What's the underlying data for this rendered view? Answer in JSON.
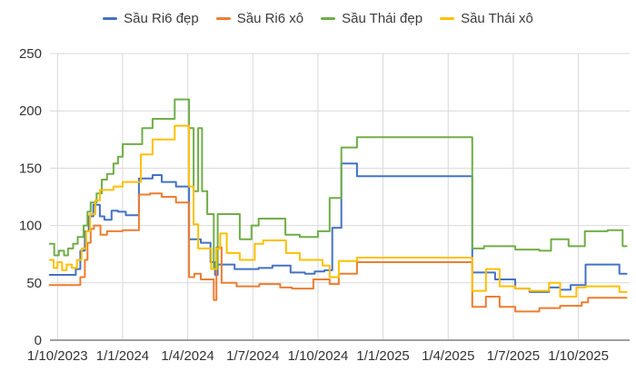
{
  "colors": {
    "background": "#FFFFFF",
    "grid": "#D9D9D9",
    "axis": "#808080",
    "label": "#333333"
  },
  "chart_data": {
    "type": "line",
    "title": "",
    "legend_position": "top",
    "grid": true,
    "step_interpolation": true,
    "ylim": [
      0,
      250
    ],
    "y_ticks": [
      0,
      50,
      100,
      150,
      200,
      250
    ],
    "x_tick_labels": [
      "1/10/2023",
      "1/1/2024",
      "1/4/2024",
      "1/7/2024",
      "1/10/2024",
      "1/1/2025",
      "1/4/2025",
      "1/7/2025",
      "1/10/2025"
    ],
    "x_unit": "quarters since 1/10/2023 tick",
    "x_range": [
      -0.12,
      8.74
    ],
    "series": [
      {
        "name": "Sầu Ri6 đẹp",
        "color": "#4472C4",
        "points": [
          [
            -0.12,
            57
          ],
          [
            0.28,
            62
          ],
          [
            0.35,
            78
          ],
          [
            0.42,
            95
          ],
          [
            0.48,
            108
          ],
          [
            0.55,
            118
          ],
          [
            0.65,
            108
          ],
          [
            0.72,
            105
          ],
          [
            0.83,
            113
          ],
          [
            0.93,
            112
          ],
          [
            1.05,
            109
          ],
          [
            1.25,
            141
          ],
          [
            1.46,
            144
          ],
          [
            1.6,
            138
          ],
          [
            1.82,
            134
          ],
          [
            2.02,
            88
          ],
          [
            2.2,
            85
          ],
          [
            2.35,
            68
          ],
          [
            2.42,
            57
          ],
          [
            2.46,
            66
          ],
          [
            2.72,
            62
          ],
          [
            3.09,
            63
          ],
          [
            3.3,
            65
          ],
          [
            3.58,
            59
          ],
          [
            3.8,
            58
          ],
          [
            3.95,
            60
          ],
          [
            4.1,
            61
          ],
          [
            4.22,
            98
          ],
          [
            4.36,
            154
          ],
          [
            4.6,
            143
          ],
          [
            6.37,
            59
          ],
          [
            6.72,
            53
          ],
          [
            7.03,
            45
          ],
          [
            7.25,
            42
          ],
          [
            7.55,
            46
          ],
          [
            7.72,
            44
          ],
          [
            7.88,
            48
          ],
          [
            8.11,
            66
          ],
          [
            8.63,
            58
          ],
          [
            8.74,
            58
          ]
        ]
      },
      {
        "name": "Sầu Ri6 xô",
        "color": "#ED7D31",
        "points": [
          [
            -0.12,
            48
          ],
          [
            0.35,
            55
          ],
          [
            0.42,
            70
          ],
          [
            0.46,
            85
          ],
          [
            0.51,
            97
          ],
          [
            0.56,
            100
          ],
          [
            0.66,
            92
          ],
          [
            0.76,
            95
          ],
          [
            1.0,
            96
          ],
          [
            1.25,
            127
          ],
          [
            1.42,
            128
          ],
          [
            1.6,
            125
          ],
          [
            1.82,
            120
          ],
          [
            2.02,
            55
          ],
          [
            2.1,
            58
          ],
          [
            2.2,
            53
          ],
          [
            2.4,
            35
          ],
          [
            2.44,
            81
          ],
          [
            2.52,
            50
          ],
          [
            2.75,
            47
          ],
          [
            3.1,
            49
          ],
          [
            3.42,
            46
          ],
          [
            3.6,
            45
          ],
          [
            3.93,
            53
          ],
          [
            4.18,
            49
          ],
          [
            4.32,
            58
          ],
          [
            4.6,
            68
          ],
          [
            6.37,
            29
          ],
          [
            6.58,
            38
          ],
          [
            6.79,
            29
          ],
          [
            7.03,
            25
          ],
          [
            7.4,
            28
          ],
          [
            7.72,
            30
          ],
          [
            8.05,
            33
          ],
          [
            8.15,
            37
          ],
          [
            8.74,
            37
          ]
        ]
      },
      {
        "name": "Sầu Thái đẹp",
        "color": "#70AD47",
        "points": [
          [
            -0.12,
            84
          ],
          [
            -0.05,
            74
          ],
          [
            0.02,
            78
          ],
          [
            0.1,
            74
          ],
          [
            0.16,
            80
          ],
          [
            0.24,
            84
          ],
          [
            0.31,
            90
          ],
          [
            0.4,
            100
          ],
          [
            0.46,
            112
          ],
          [
            0.51,
            120
          ],
          [
            0.6,
            128
          ],
          [
            0.68,
            140
          ],
          [
            0.76,
            145
          ],
          [
            0.86,
            154
          ],
          [
            0.93,
            160
          ],
          [
            1.0,
            171
          ],
          [
            1.3,
            185
          ],
          [
            1.46,
            193
          ],
          [
            1.8,
            210
          ],
          [
            2.02,
            185
          ],
          [
            2.09,
            130
          ],
          [
            2.16,
            185
          ],
          [
            2.22,
            130
          ],
          [
            2.3,
            110
          ],
          [
            2.4,
            62
          ],
          [
            2.46,
            110
          ],
          [
            2.8,
            88
          ],
          [
            2.98,
            100
          ],
          [
            3.09,
            106
          ],
          [
            3.5,
            92
          ],
          [
            3.72,
            90
          ],
          [
            4.0,
            95
          ],
          [
            4.18,
            124
          ],
          [
            4.36,
            168
          ],
          [
            4.6,
            177
          ],
          [
            6.37,
            80
          ],
          [
            6.55,
            82
          ],
          [
            7.03,
            79
          ],
          [
            7.4,
            78
          ],
          [
            7.58,
            88
          ],
          [
            7.85,
            82
          ],
          [
            8.1,
            95
          ],
          [
            8.45,
            96
          ],
          [
            8.68,
            82
          ],
          [
            8.74,
            82
          ]
        ]
      },
      {
        "name": "Sầu Thái xô",
        "color": "#FFC000",
        "points": [
          [
            -0.12,
            70
          ],
          [
            -0.06,
            63
          ],
          [
            0,
            68
          ],
          [
            0.07,
            61
          ],
          [
            0.14,
            66
          ],
          [
            0.22,
            63
          ],
          [
            0.3,
            70
          ],
          [
            0.37,
            80
          ],
          [
            0.44,
            95
          ],
          [
            0.5,
            110
          ],
          [
            0.58,
            122
          ],
          [
            0.65,
            131
          ],
          [
            0.86,
            134
          ],
          [
            1.0,
            138
          ],
          [
            1.28,
            162
          ],
          [
            1.46,
            175
          ],
          [
            1.8,
            187
          ],
          [
            2.02,
            134
          ],
          [
            2.09,
            101
          ],
          [
            2.16,
            80
          ],
          [
            2.36,
            62
          ],
          [
            2.44,
            80
          ],
          [
            2.5,
            93
          ],
          [
            2.6,
            76
          ],
          [
            2.8,
            70
          ],
          [
            3.03,
            84
          ],
          [
            3.16,
            87
          ],
          [
            3.51,
            76
          ],
          [
            3.72,
            70
          ],
          [
            4.07,
            65
          ],
          [
            4.18,
            55
          ],
          [
            4.32,
            69
          ],
          [
            4.6,
            72
          ],
          [
            6.37,
            43
          ],
          [
            6.58,
            62
          ],
          [
            6.79,
            47
          ],
          [
            7.03,
            45
          ],
          [
            7.25,
            43
          ],
          [
            7.55,
            50
          ],
          [
            7.72,
            38
          ],
          [
            7.97,
            46
          ],
          [
            8.11,
            47
          ],
          [
            8.63,
            42
          ],
          [
            8.74,
            42
          ]
        ]
      }
    ]
  }
}
